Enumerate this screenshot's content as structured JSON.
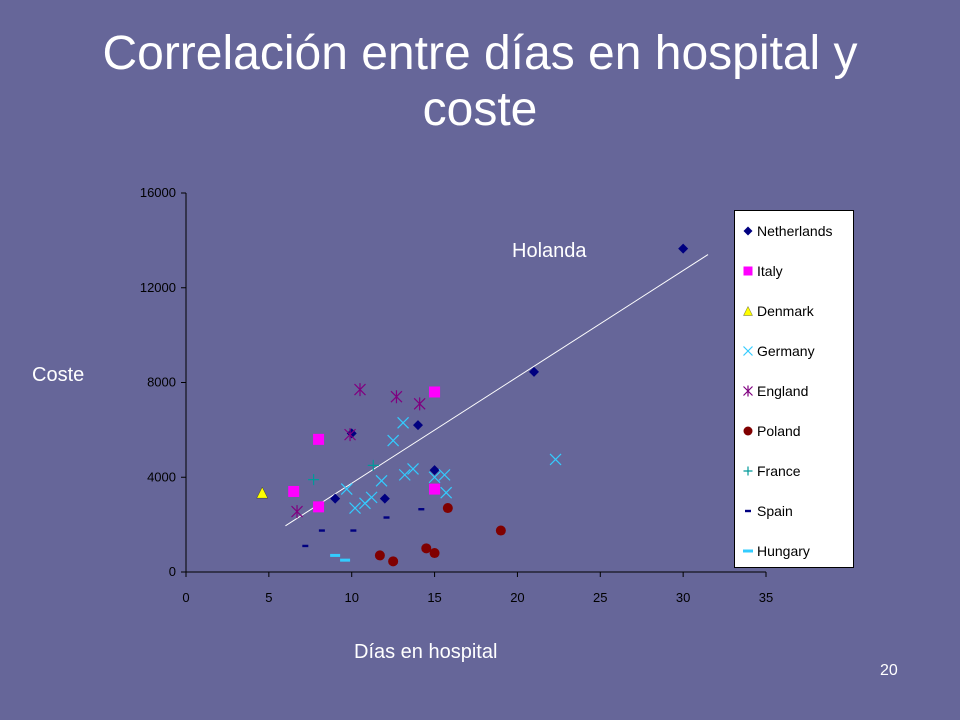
{
  "slide": {
    "title": "Correlación entre días en hospital y coste",
    "page_number": "20"
  },
  "chart_data": {
    "type": "scatter",
    "title": "",
    "xlabel": "Días en hospital",
    "ylabel": "Coste",
    "xlim": [
      0,
      35
    ],
    "ylim": [
      0,
      16000
    ],
    "xticks": [
      0,
      5,
      10,
      15,
      20,
      25,
      30,
      35
    ],
    "yticks": [
      0,
      4000,
      8000,
      12000,
      16000
    ],
    "grid": false,
    "legend_position": "right",
    "annotation": "Holanda",
    "trendline": {
      "from": [
        6,
        1950
      ],
      "to": [
        31.5,
        13400
      ]
    },
    "series": [
      {
        "name": "Netherlands",
        "marker": "diamond",
        "color": "#000080",
        "points": [
          [
            10,
            5850
          ],
          [
            14,
            6200
          ],
          [
            15,
            4300
          ],
          [
            12,
            3100
          ],
          [
            9,
            3100
          ],
          [
            21,
            8450
          ],
          [
            30,
            13650
          ]
        ]
      },
      {
        "name": "Italy",
        "marker": "square",
        "color": "#ff00ff",
        "points": [
          [
            8,
            5600
          ],
          [
            15,
            7600
          ],
          [
            6.5,
            3400
          ],
          [
            8,
            2750
          ],
          [
            15,
            3500
          ]
        ]
      },
      {
        "name": "Denmark",
        "marker": "triangle",
        "color": "#ffff00",
        "points": [
          [
            4.6,
            3350
          ]
        ]
      },
      {
        "name": "Germany",
        "marker": "x",
        "color": "#33ccff",
        "points": [
          [
            12.5,
            5550
          ],
          [
            13.1,
            6300
          ],
          [
            11.8,
            3850
          ],
          [
            13.2,
            4100
          ],
          [
            13.7,
            4350
          ],
          [
            15,
            4000
          ],
          [
            15.6,
            4100
          ],
          [
            15.7,
            3350
          ],
          [
            9.7,
            3500
          ],
          [
            10.2,
            2700
          ],
          [
            10.8,
            2900
          ],
          [
            11.2,
            3150
          ],
          [
            22.3,
            4750
          ]
        ]
      },
      {
        "name": "England",
        "marker": "asterisk",
        "color": "#800080",
        "points": [
          [
            10.5,
            7700
          ],
          [
            12.7,
            7400
          ],
          [
            14.1,
            7100
          ],
          [
            9.9,
            5800
          ],
          [
            6.7,
            2550
          ]
        ]
      },
      {
        "name": "Poland",
        "marker": "circle",
        "color": "#800000",
        "points": [
          [
            15.8,
            2700
          ],
          [
            19,
            1750
          ],
          [
            11.7,
            700
          ],
          [
            12.5,
            450
          ],
          [
            14.5,
            1000
          ],
          [
            15,
            800
          ]
        ]
      },
      {
        "name": "France",
        "marker": "plus",
        "color": "#009999",
        "points": [
          [
            7.7,
            3900
          ],
          [
            11.3,
            4500
          ]
        ]
      },
      {
        "name": "Spain",
        "marker": "dash",
        "color": "#000080",
        "points": [
          [
            7.2,
            1100
          ],
          [
            8.2,
            1750
          ],
          [
            10.1,
            1750
          ],
          [
            12.1,
            2300
          ],
          [
            14.2,
            2650
          ]
        ]
      },
      {
        "name": "Hungary",
        "marker": "dash-wide",
        "color": "#33ccff",
        "points": [
          [
            9,
            700
          ],
          [
            9.6,
            500
          ]
        ]
      }
    ]
  }
}
